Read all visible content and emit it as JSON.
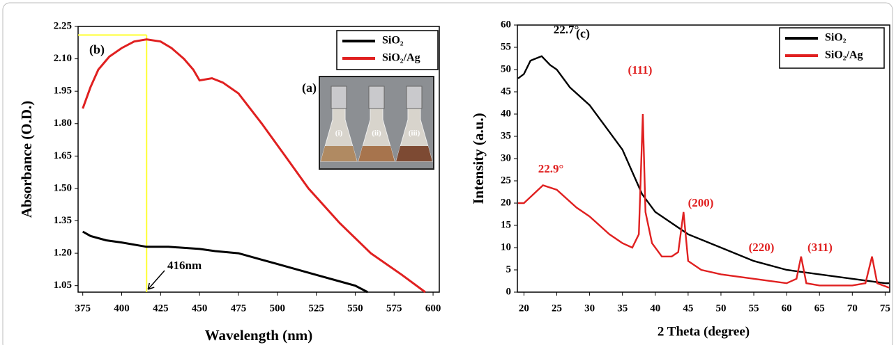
{
  "chart_data": [
    {
      "type": "line",
      "panel": "(b)",
      "xlabel": "Wavelength (nm)",
      "ylabel": "Absorbance (O.D.)",
      "xlim": [
        372,
        604
      ],
      "ylim": [
        1.02,
        2.25
      ],
      "xticks": [
        375,
        400,
        425,
        450,
        475,
        500,
        525,
        550,
        575,
        600
      ],
      "yticks": [
        {
          "value": 1.05,
          "label": "1.05"
        },
        {
          "value": 1.2,
          "label": "1.20"
        },
        1.35,
        {
          "value": 1.5,
          "label": "1.50"
        },
        1.65,
        {
          "value": 1.8,
          "label": "1.80"
        },
        1.95,
        {
          "value": 2.1,
          "label": "2.10"
        },
        2.25
      ],
      "legend": "top-right",
      "series": [
        {
          "name": "SiO₂",
          "color": "#000000",
          "x": [
            375,
            380,
            390,
            400,
            416,
            430,
            450,
            460,
            475,
            490,
            500,
            510,
            525,
            540,
            550,
            558
          ],
          "values": [
            1.3,
            1.28,
            1.26,
            1.25,
            1.23,
            1.23,
            1.22,
            1.21,
            1.2,
            1.17,
            1.15,
            1.13,
            1.1,
            1.07,
            1.05,
            1.02
          ]
        },
        {
          "name": "SiO₂/Ag",
          "color": "#e02020",
          "x": [
            375,
            380,
            385,
            392,
            400,
            408,
            416,
            425,
            432,
            440,
            446,
            450,
            458,
            465,
            475,
            490,
            505,
            520,
            540,
            560,
            580,
            595
          ],
          "values": [
            1.87,
            1.97,
            2.05,
            2.11,
            2.15,
            2.18,
            2.19,
            2.18,
            2.15,
            2.1,
            2.05,
            2.0,
            2.01,
            1.99,
            1.94,
            1.8,
            1.65,
            1.5,
            1.34,
            1.2,
            1.1,
            1.02
          ]
        }
      ],
      "guide": {
        "x": 416,
        "y": 2.21,
        "color": "#ffff33",
        "label": "416nm"
      },
      "inset": {
        "label": "(a)",
        "items": [
          "(i)",
          "(ii)",
          "(iii)"
        ]
      }
    },
    {
      "type": "line",
      "panel": "(c)",
      "xlabel": "2 Theta (degree)",
      "ylabel": "Intensity (a.u.)",
      "xlim": [
        19,
        75.7
      ],
      "ylim": [
        0,
        60
      ],
      "xticks": [
        20,
        25,
        30,
        35,
        40,
        45,
        50,
        55,
        60,
        65,
        70,
        75
      ],
      "yticks": [
        0,
        5,
        10,
        15,
        20,
        25,
        30,
        35,
        40,
        45,
        50,
        55,
        60
      ],
      "legend": "top-right",
      "peak_labels": [
        "22.7°",
        "22.9°",
        "(111)",
        "(200)",
        "(220)",
        "(311)"
      ],
      "series": [
        {
          "name": "SiO₂",
          "color": "#000000",
          "x": [
            19.1,
            20,
            21,
            22.7,
            24,
            25,
            27,
            30,
            33,
            35,
            38,
            40,
            45,
            50,
            55,
            60,
            65,
            70,
            75,
            75.6
          ],
          "values": [
            48,
            49,
            52,
            53,
            51,
            50,
            46,
            42,
            36,
            32,
            22,
            18,
            13,
            10,
            7,
            5,
            4,
            3,
            2,
            2
          ]
        },
        {
          "name": "SiO₂/Ag",
          "color": "#e02020",
          "x": [
            19.1,
            20,
            22.9,
            25,
            28,
            30,
            33,
            35,
            36.5,
            37.5,
            38.1,
            38.5,
            39.5,
            41,
            42.5,
            43.5,
            44.3,
            45,
            47,
            50,
            55,
            60,
            61.5,
            62.2,
            63,
            65,
            70,
            72,
            73,
            73.8,
            75.6
          ],
          "values": [
            20,
            20,
            24,
            23,
            19,
            17,
            13,
            11,
            10,
            13,
            40,
            18,
            11,
            8,
            8,
            9,
            18,
            7,
            5,
            4,
            3,
            2,
            3,
            8,
            2,
            1.5,
            1.5,
            2,
            8,
            2,
            1
          ]
        }
      ]
    }
  ]
}
